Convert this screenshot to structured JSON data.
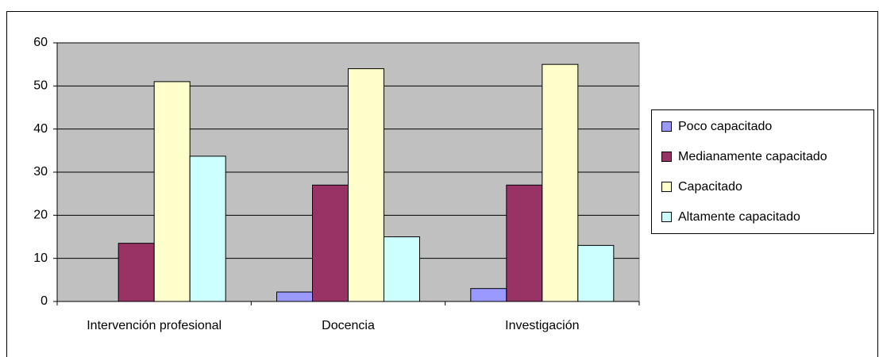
{
  "chart_data": {
    "type": "bar",
    "categories": [
      "Intervención profesional",
      "Docencia",
      "Investigación"
    ],
    "series": [
      {
        "name": "Poco capacitado",
        "color": "#9999ff",
        "values": [
          0,
          2.2,
          3
        ]
      },
      {
        "name": "Medianamente capacitado",
        "color": "#993366",
        "values": [
          13.5,
          27,
          27
        ]
      },
      {
        "name": "Capacitado",
        "color": "#ffffcc",
        "values": [
          51,
          54,
          55
        ]
      },
      {
        "name": "Altamente capacitado",
        "color": "#ccffff",
        "values": [
          33.7,
          15,
          13
        ]
      }
    ],
    "ylim": [
      0,
      60
    ],
    "yticks": [
      0,
      10,
      20,
      30,
      40,
      50,
      60
    ],
    "grid": true,
    "legend": "right"
  }
}
